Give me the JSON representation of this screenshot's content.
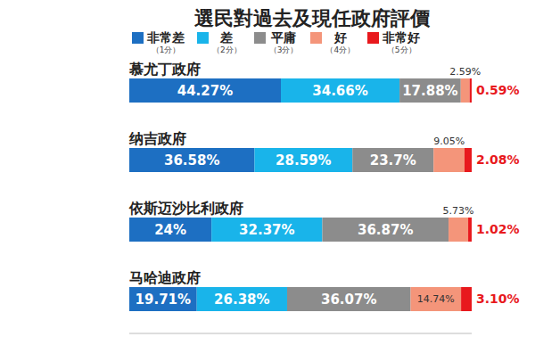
{
  "chart_data": {
    "type": "bar",
    "title": "選民對過去及現任政府評價",
    "orientation": "horizontal",
    "stacked": true,
    "data_labels": true,
    "tick_labels": "y",
    "legend": "top",
    "categories": [
      "慕尤丁政府",
      "纳吉政府",
      "依斯迈沙比利政府",
      "马哈迪政府"
    ],
    "xlim": [
      0,
      100
    ],
    "series": [
      {
        "name": "非常差",
        "score_label": "（1分）",
        "color": "#1d6fc2",
        "values": [
          44.27,
          36.58,
          24,
          19.71
        ],
        "value_labels": [
          "44.27%",
          "36.58%",
          "24%",
          "19.71%"
        ]
      },
      {
        "name": "差",
        "score_label": "（2分）",
        "color": "#19b4ea",
        "values": [
          34.66,
          28.59,
          32.37,
          26.38
        ],
        "value_labels": [
          "34.66%",
          "28.59%",
          "32.37%",
          "26.38%"
        ]
      },
      {
        "name": "平庸",
        "score_label": "（3分）",
        "color": "#8c8c8c",
        "values": [
          17.88,
          23.7,
          36.87,
          36.07
        ],
        "value_labels": [
          "17.88%",
          "23.7%",
          "36.87%",
          "36.07%"
        ]
      },
      {
        "name": "好",
        "score_label": "（4分）",
        "color": "#f4957a",
        "values": [
          2.59,
          9.05,
          5.73,
          14.74
        ],
        "value_labels": [
          "2.59%",
          "9.05%",
          "5.73%",
          "14.74%"
        ]
      },
      {
        "name": "非常好",
        "score_label": "（5分）",
        "color": "#e8191d",
        "values": [
          0.59,
          2.08,
          1.02,
          3.1
        ],
        "value_labels": [
          "0.59%",
          "2.08%",
          "1.02%",
          "3.10%"
        ]
      }
    ]
  }
}
